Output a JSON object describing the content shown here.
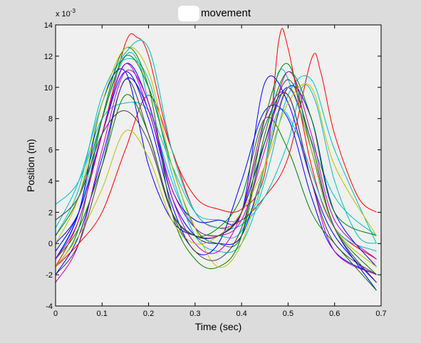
{
  "chart_data": {
    "type": "line",
    "title": "movement",
    "xlabel": "Time (sec)",
    "ylabel": "Position (m)",
    "y_exponent_label": "x 10",
    "y_exponent_power": "-3",
    "xlim": [
      0,
      0.7
    ],
    "ylim": [
      -4,
      14
    ],
    "x_ticks": [
      "0",
      "0.1",
      "0.2",
      "0.3",
      "0.4",
      "0.5",
      "0.6",
      "0.7"
    ],
    "y_ticks": [
      "-4",
      "-2",
      "0",
      "2",
      "4",
      "6",
      "8",
      "10",
      "12",
      "14"
    ],
    "grid": false,
    "legend": "none",
    "series": [
      {
        "color": "#ff0000",
        "points": [
          [
            0,
            -1.5
          ],
          [
            0.05,
            1.5
          ],
          [
            0.1,
            7.0
          ],
          [
            0.15,
            12.8
          ],
          [
            0.175,
            13.2
          ],
          [
            0.2,
            12.0
          ],
          [
            0.25,
            6.0
          ],
          [
            0.3,
            3.0
          ],
          [
            0.35,
            2.2
          ],
          [
            0.4,
            2.2
          ],
          [
            0.45,
            4.5
          ],
          [
            0.48,
            13.0
          ],
          [
            0.5,
            12.5
          ],
          [
            0.55,
            5.0
          ],
          [
            0.6,
            1.0
          ],
          [
            0.69,
            -1.0
          ]
        ]
      },
      {
        "color": "#ff0000",
        "points": [
          [
            0,
            -1.5
          ],
          [
            0.05,
            0.0
          ],
          [
            0.1,
            2.0
          ],
          [
            0.15,
            6.0
          ],
          [
            0.2,
            9.5
          ],
          [
            0.25,
            6.0
          ],
          [
            0.3,
            2.0
          ],
          [
            0.35,
            1.0
          ],
          [
            0.4,
            1.5
          ],
          [
            0.45,
            3.0
          ],
          [
            0.5,
            5.5
          ],
          [
            0.55,
            11.8
          ],
          [
            0.57,
            11.0
          ],
          [
            0.6,
            7.0
          ],
          [
            0.65,
            3.0
          ],
          [
            0.69,
            2.0
          ]
        ]
      },
      {
        "color": "#00bfbf",
        "points": [
          [
            0,
            1.0
          ],
          [
            0.05,
            4.0
          ],
          [
            0.1,
            9.0
          ],
          [
            0.15,
            12.2
          ],
          [
            0.2,
            12.5
          ],
          [
            0.25,
            6.0
          ],
          [
            0.3,
            2.0
          ],
          [
            0.35,
            1.0
          ],
          [
            0.4,
            1.2
          ],
          [
            0.45,
            3.0
          ],
          [
            0.5,
            6.5
          ],
          [
            0.53,
            10.0
          ],
          [
            0.56,
            9.0
          ],
          [
            0.6,
            4.0
          ],
          [
            0.65,
            0.5
          ],
          [
            0.69,
            0.0
          ]
        ]
      },
      {
        "color": "#00bfbf",
        "points": [
          [
            0,
            -1.0
          ],
          [
            0.05,
            2.0
          ],
          [
            0.1,
            8.0
          ],
          [
            0.15,
            12.0
          ],
          [
            0.18,
            11.5
          ],
          [
            0.2,
            9.0
          ],
          [
            0.25,
            4.0
          ],
          [
            0.3,
            1.0
          ],
          [
            0.35,
            0.5
          ],
          [
            0.4,
            0.8
          ],
          [
            0.45,
            5.0
          ],
          [
            0.48,
            11.0
          ],
          [
            0.52,
            9.0
          ],
          [
            0.6,
            3.0
          ],
          [
            0.69,
            0.5
          ]
        ]
      },
      {
        "color": "#00bfbf",
        "points": [
          [
            0,
            2.5
          ],
          [
            0.05,
            4.0
          ],
          [
            0.1,
            8.0
          ],
          [
            0.15,
            9.0
          ],
          [
            0.2,
            8.5
          ],
          [
            0.25,
            5.0
          ],
          [
            0.3,
            2.0
          ],
          [
            0.35,
            1.5
          ],
          [
            0.4,
            1.5
          ],
          [
            0.43,
            2.5
          ],
          [
            0.45,
            5.0
          ],
          [
            0.48,
            8.5
          ],
          [
            0.52,
            7.0
          ],
          [
            0.6,
            1.0
          ],
          [
            0.69,
            -0.5
          ]
        ]
      },
      {
        "color": "#00bfbf",
        "points": [
          [
            0,
            0.5
          ],
          [
            0.05,
            3.5
          ],
          [
            0.1,
            9.5
          ],
          [
            0.15,
            11.8
          ],
          [
            0.2,
            10.5
          ],
          [
            0.25,
            4.5
          ],
          [
            0.3,
            0.5
          ],
          [
            0.35,
            -0.5
          ],
          [
            0.4,
            0.0
          ],
          [
            0.45,
            4.0
          ],
          [
            0.5,
            9.5
          ],
          [
            0.55,
            10.5
          ],
          [
            0.6,
            6.0
          ],
          [
            0.69,
            0.0
          ]
        ]
      },
      {
        "color": "#0000ff",
        "points": [
          [
            0,
            -2.0
          ],
          [
            0.05,
            0.5
          ],
          [
            0.1,
            5.5
          ],
          [
            0.15,
            10.5
          ],
          [
            0.2,
            8.5
          ],
          [
            0.25,
            3.0
          ],
          [
            0.3,
            0.5
          ],
          [
            0.35,
            0.0
          ],
          [
            0.4,
            0.5
          ],
          [
            0.45,
            5.0
          ],
          [
            0.5,
            10.0
          ],
          [
            0.55,
            8.0
          ],
          [
            0.6,
            2.0
          ],
          [
            0.69,
            -1.5
          ]
        ]
      },
      {
        "color": "#0000ff",
        "points": [
          [
            0,
            -0.5
          ],
          [
            0.05,
            2.0
          ],
          [
            0.1,
            7.0
          ],
          [
            0.15,
            11.5
          ],
          [
            0.2,
            9.0
          ],
          [
            0.25,
            3.5
          ],
          [
            0.3,
            1.5
          ],
          [
            0.35,
            1.5
          ],
          [
            0.4,
            2.0
          ],
          [
            0.45,
            10.3
          ],
          [
            0.5,
            9.0
          ],
          [
            0.55,
            4.0
          ],
          [
            0.6,
            0.5
          ],
          [
            0.69,
            -2.5
          ]
        ]
      },
      {
        "color": "#0000ff",
        "points": [
          [
            0,
            -1.0
          ],
          [
            0.05,
            2.0
          ],
          [
            0.1,
            9.0
          ],
          [
            0.15,
            11.0
          ],
          [
            0.2,
            5.0
          ],
          [
            0.25,
            1.5
          ],
          [
            0.3,
            0.5
          ],
          [
            0.35,
            0.5
          ],
          [
            0.4,
            2.0
          ],
          [
            0.45,
            6.5
          ],
          [
            0.5,
            10.0
          ],
          [
            0.55,
            6.0
          ],
          [
            0.6,
            1.0
          ],
          [
            0.69,
            -3.0
          ]
        ]
      },
      {
        "color": "#0000ff",
        "points": [
          [
            0,
            0.0
          ],
          [
            0.05,
            2.0
          ],
          [
            0.1,
            7.0
          ],
          [
            0.15,
            11.0
          ],
          [
            0.2,
            8.0
          ],
          [
            0.25,
            2.5
          ],
          [
            0.3,
            -0.5
          ],
          [
            0.35,
            0.0
          ],
          [
            0.4,
            4.0
          ],
          [
            0.45,
            8.5
          ],
          [
            0.5,
            8.0
          ],
          [
            0.55,
            3.0
          ],
          [
            0.6,
            -0.5
          ],
          [
            0.69,
            -2.0
          ]
        ]
      },
      {
        "color": "#008000",
        "points": [
          [
            0,
            -1.5
          ],
          [
            0.05,
            1.0
          ],
          [
            0.1,
            8.0
          ],
          [
            0.15,
            12.5
          ],
          [
            0.2,
            10.0
          ],
          [
            0.25,
            2.0
          ],
          [
            0.3,
            -1.0
          ],
          [
            0.35,
            -1.5
          ],
          [
            0.4,
            0.5
          ],
          [
            0.45,
            8.0
          ],
          [
            0.5,
            11.5
          ],
          [
            0.55,
            6.0
          ],
          [
            0.6,
            1.0
          ],
          [
            0.69,
            -2.0
          ]
        ]
      },
      {
        "color": "#008000",
        "points": [
          [
            0,
            0.5
          ],
          [
            0.05,
            3.0
          ],
          [
            0.1,
            8.0
          ],
          [
            0.15,
            12.0
          ],
          [
            0.2,
            10.0
          ],
          [
            0.25,
            5.0
          ],
          [
            0.3,
            1.0
          ],
          [
            0.35,
            0.0
          ],
          [
            0.4,
            0.5
          ],
          [
            0.45,
            7.0
          ],
          [
            0.5,
            11.0
          ],
          [
            0.55,
            8.0
          ],
          [
            0.6,
            2.0
          ],
          [
            0.69,
            0.5
          ]
        ]
      },
      {
        "color": "#008000",
        "points": [
          [
            0,
            -1.0
          ],
          [
            0.05,
            1.0
          ],
          [
            0.1,
            5.0
          ],
          [
            0.15,
            9.5
          ],
          [
            0.2,
            7.0
          ],
          [
            0.25,
            2.0
          ],
          [
            0.3,
            0.5
          ],
          [
            0.35,
            1.0
          ],
          [
            0.4,
            3.0
          ],
          [
            0.45,
            8.0
          ],
          [
            0.5,
            6.0
          ],
          [
            0.55,
            2.0
          ],
          [
            0.6,
            0.0
          ],
          [
            0.69,
            -3.0
          ]
        ]
      },
      {
        "color": "#bf00bf",
        "points": [
          [
            0,
            -2.5
          ],
          [
            0.05,
            0.0
          ],
          [
            0.1,
            6.0
          ],
          [
            0.15,
            11.0
          ],
          [
            0.2,
            9.0
          ],
          [
            0.25,
            3.0
          ],
          [
            0.3,
            0.0
          ],
          [
            0.35,
            -0.5
          ],
          [
            0.4,
            2.0
          ],
          [
            0.45,
            8.0
          ],
          [
            0.5,
            9.5
          ],
          [
            0.55,
            4.0
          ],
          [
            0.6,
            -0.5
          ],
          [
            0.69,
            -2.0
          ]
        ]
      },
      {
        "color": "#bf00bf",
        "points": [
          [
            0,
            -1.0
          ],
          [
            0.05,
            1.5
          ],
          [
            0.1,
            7.0
          ],
          [
            0.15,
            11.5
          ],
          [
            0.2,
            8.5
          ],
          [
            0.25,
            3.5
          ],
          [
            0.3,
            1.0
          ],
          [
            0.35,
            0.5
          ],
          [
            0.4,
            1.5
          ],
          [
            0.45,
            6.0
          ],
          [
            0.5,
            11.0
          ],
          [
            0.55,
            7.0
          ],
          [
            0.6,
            1.5
          ],
          [
            0.69,
            -1.0
          ]
        ]
      },
      {
        "color": "#bfbf00",
        "points": [
          [
            0,
            -1.5
          ],
          [
            0.05,
            0.5
          ],
          [
            0.1,
            3.5
          ],
          [
            0.15,
            7.2
          ],
          [
            0.2,
            5.5
          ],
          [
            0.25,
            1.5
          ],
          [
            0.3,
            0.0
          ],
          [
            0.35,
            0.5
          ],
          [
            0.4,
            2.0
          ],
          [
            0.45,
            5.0
          ],
          [
            0.5,
            9.0
          ],
          [
            0.55,
            10.0
          ],
          [
            0.6,
            5.0
          ],
          [
            0.69,
            0.5
          ]
        ]
      },
      {
        "color": "#bfbf00",
        "points": [
          [
            0,
            0.0
          ],
          [
            0.05,
            3.0
          ],
          [
            0.1,
            9.0
          ],
          [
            0.15,
            12.5
          ],
          [
            0.2,
            11.0
          ],
          [
            0.25,
            5.0
          ],
          [
            0.3,
            1.0
          ],
          [
            0.35,
            -1.5
          ],
          [
            0.4,
            0.0
          ],
          [
            0.45,
            5.0
          ],
          [
            0.5,
            10.0
          ],
          [
            0.55,
            6.0
          ],
          [
            0.6,
            1.0
          ],
          [
            0.69,
            -1.5
          ]
        ]
      },
      {
        "color": "#404040",
        "points": [
          [
            0,
            -2.0
          ],
          [
            0.05,
            0.0
          ],
          [
            0.1,
            5.0
          ],
          [
            0.15,
            10.5
          ],
          [
            0.2,
            7.0
          ],
          [
            0.25,
            2.0
          ],
          [
            0.3,
            -0.5
          ],
          [
            0.35,
            -1.0
          ],
          [
            0.4,
            1.0
          ],
          [
            0.45,
            6.5
          ],
          [
            0.5,
            10.5
          ],
          [
            0.55,
            6.5
          ],
          [
            0.6,
            1.0
          ],
          [
            0.69,
            -2.5
          ]
        ]
      },
      {
        "color": "#404040",
        "points": [
          [
            0,
            1.5
          ],
          [
            0.05,
            3.0
          ],
          [
            0.1,
            7.0
          ],
          [
            0.15,
            8.5
          ],
          [
            0.2,
            6.5
          ],
          [
            0.25,
            2.0
          ],
          [
            0.3,
            0.5
          ],
          [
            0.35,
            0.5
          ],
          [
            0.4,
            2.0
          ],
          [
            0.45,
            7.5
          ],
          [
            0.5,
            9.5
          ],
          [
            0.55,
            4.0
          ],
          [
            0.6,
            0.0
          ],
          [
            0.69,
            -2.0
          ]
        ]
      }
    ]
  },
  "colors": {
    "figure_bg": "#dcdcdc",
    "axes_bg": "#f0f0f0",
    "axis": "#000000"
  }
}
